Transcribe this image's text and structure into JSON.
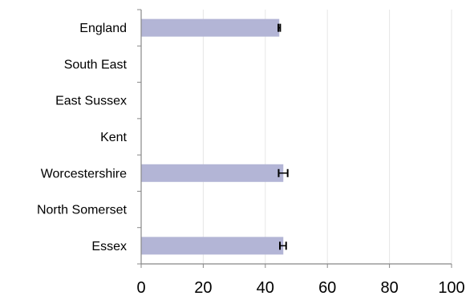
{
  "chart_data": {
    "type": "bar",
    "orientation": "horizontal",
    "categories": [
      "England",
      "South East",
      "East Sussex",
      "Kent",
      "Worcestershire",
      "North Somerset",
      "Essex"
    ],
    "values": [
      44.5,
      null,
      null,
      null,
      45.8,
      null,
      45.8
    ],
    "error_bars": [
      {
        "low": 44.2,
        "high": 44.8
      },
      null,
      null,
      null,
      {
        "low": 44.3,
        "high": 47.2
      },
      null,
      {
        "low": 44.7,
        "high": 46.7
      }
    ],
    "xlim": [
      0,
      100
    ],
    "x_ticks": [
      0,
      20,
      40,
      60,
      80,
      100
    ],
    "x_tick_labels": [
      "0",
      "20",
      "40",
      "60",
      "80",
      "100"
    ],
    "grid": "vertical",
    "colors": {
      "bar": "#b3b5d6",
      "grid": "#e6e6e6",
      "axis": "#888888",
      "error": "#000000"
    }
  }
}
